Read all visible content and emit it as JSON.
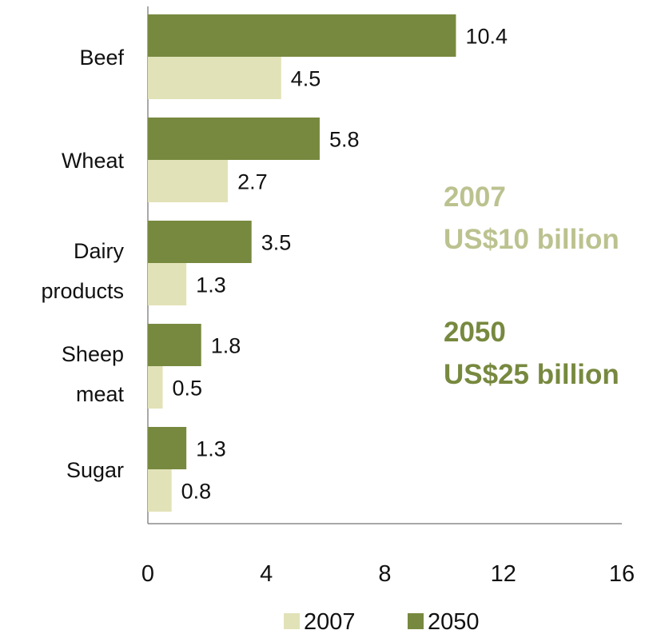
{
  "chart_data": {
    "type": "bar",
    "orientation": "horizontal",
    "categories": [
      "Beef",
      "Wheat",
      "Dairy products",
      "Sheep meat",
      "Sugar"
    ],
    "series": [
      {
        "name": "2007",
        "values": [
          4.5,
          2.7,
          1.3,
          0.5,
          0.8
        ],
        "color": "#e2e2b8"
      },
      {
        "name": "2050",
        "values": [
          10.4,
          5.8,
          3.5,
          1.8,
          1.3
        ],
        "color": "#77893f"
      }
    ],
    "xlim": [
      0,
      16
    ],
    "xticks": [
      "0",
      "4",
      "8",
      "12",
      "16"
    ],
    "grid": false,
    "legend": "bottom",
    "annotations": [
      {
        "lines": [
          "2007",
          "US$10 billion"
        ],
        "color": "#bcc28f"
      },
      {
        "lines": [
          "2050",
          "US$25 billion"
        ],
        "color": "#77893f"
      }
    ]
  }
}
